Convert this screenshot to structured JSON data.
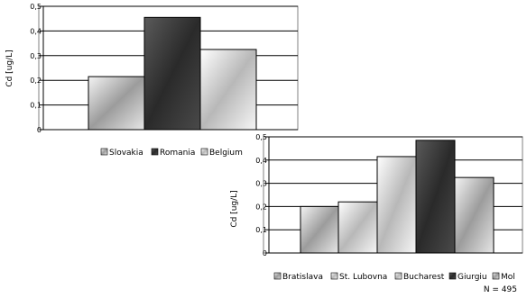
{
  "chart_data": [
    {
      "type": "bar",
      "categories": [
        "Slovakia",
        "Romania",
        "Belgium"
      ],
      "values": [
        0.215,
        0.455,
        0.325
      ],
      "title": "",
      "xlabel": "",
      "ylabel": "Cd [ug/L]",
      "ylim": [
        0,
        0.5
      ],
      "yticks": [
        "0",
        "0,1",
        "0,2",
        "0,3",
        "0,4",
        "0,5"
      ],
      "grid": true,
      "legend_position": "bottom",
      "legend": [
        "Slovakia",
        "Romania",
        "Belgium"
      ],
      "colors": [
        "#c8c8c8",
        "#444444",
        "#b4b4b4"
      ]
    },
    {
      "type": "bar",
      "categories": [
        "Bratislava",
        "St. Lubovna",
        "Bucharest",
        "Giurgiu",
        "Mol"
      ],
      "values": [
        0.2,
        0.22,
        0.415,
        0.485,
        0.325
      ],
      "title": "",
      "xlabel": "",
      "ylabel": "Cd [ug/L]",
      "ylim": [
        0,
        0.5
      ],
      "yticks": [
        "0",
        "0,1",
        "0,2",
        "0,3",
        "0,4",
        "0,5"
      ],
      "grid": true,
      "legend_position": "bottom",
      "legend": [
        "Bratislava",
        "St. Lubovna",
        "Bucharest",
        "Giurgiu",
        "Mol"
      ],
      "annotation": "N = 495",
      "colors": [
        "#bdbdbd",
        "#d2d2d2",
        "#ececec",
        "#444444",
        "#c8c8c8"
      ]
    }
  ]
}
